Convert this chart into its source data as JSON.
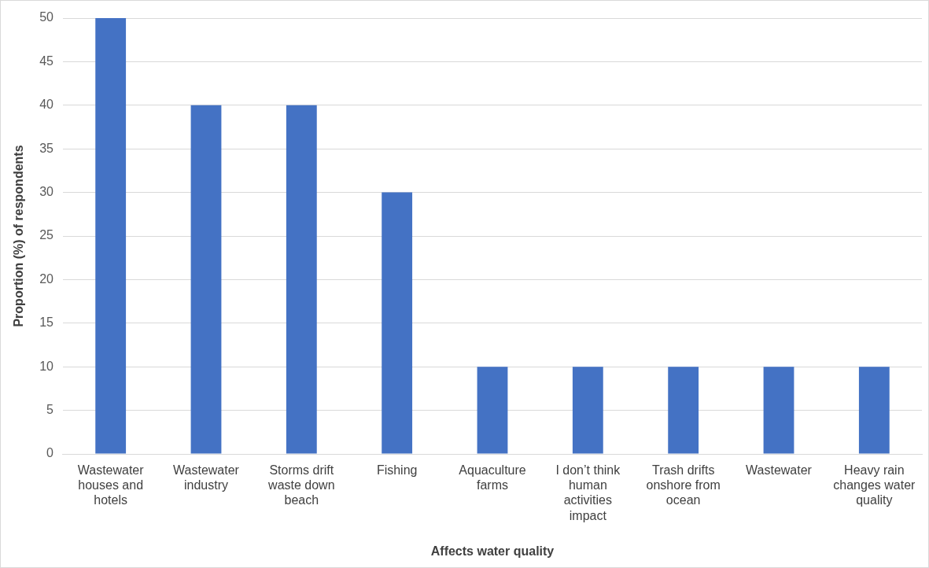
{
  "chart_data": {
    "type": "bar",
    "xlabel": "Affects water quality",
    "ylabel": "Proportion (%) of respondents",
    "categories": [
      "Wastewater houses and hotels",
      "Wastewater industry",
      "Storms drift waste down beach",
      "Fishing",
      "Aquaculture farms",
      "I don’t think human activities impact",
      "Trash drifts onshore from ocean",
      "Wastewater",
      "Heavy rain changes water quality"
    ],
    "values": [
      50,
      40,
      40,
      30,
      10,
      10,
      10,
      10,
      10
    ],
    "color": "#4472c4",
    "ylim": [
      0,
      50
    ],
    "yticks": [
      0,
      5,
      10,
      15,
      20,
      25,
      30,
      35,
      40,
      45,
      50
    ],
    "grid": "y"
  }
}
